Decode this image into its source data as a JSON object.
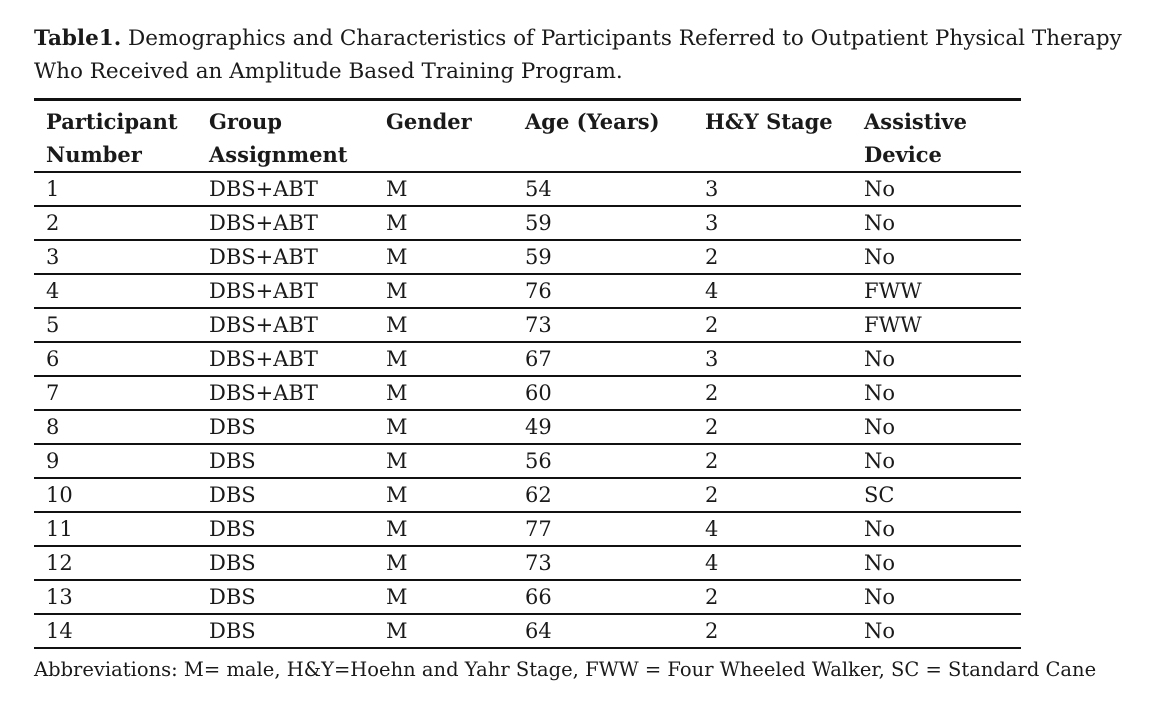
{
  "caption": {
    "label": "Table1.",
    "text": "Demographics and Characteristics of Participants Referred to Outpatient Physical Therapy Who Received an Amplitude Based Training Program."
  },
  "table": {
    "headers": {
      "participant_line1": "Participant",
      "participant_line2": "Number",
      "group_line1": "Group",
      "group_line2": "Assignment",
      "gender": "Gender",
      "age": "Age (Years)",
      "hy": "H&Y Stage",
      "device_line1": "Assistive",
      "device_line2": "Device"
    },
    "rows": [
      {
        "participant": "1",
        "group": "DBS+ABT",
        "gender": "M",
        "age": "54",
        "hy": "3",
        "device": "No"
      },
      {
        "participant": "2",
        "group": "DBS+ABT",
        "gender": "M",
        "age": "59",
        "hy": "3",
        "device": "No"
      },
      {
        "participant": "3",
        "group": "DBS+ABT",
        "gender": "M",
        "age": "59",
        "hy": "2",
        "device": "No"
      },
      {
        "participant": "4",
        "group": "DBS+ABT",
        "gender": "M",
        "age": "76",
        "hy": "4",
        "device": "FWW"
      },
      {
        "participant": "5",
        "group": "DBS+ABT",
        "gender": "M",
        "age": "73",
        "hy": "2",
        "device": "FWW"
      },
      {
        "participant": "6",
        "group": "DBS+ABT",
        "gender": "M",
        "age": "67",
        "hy": "3",
        "device": "No"
      },
      {
        "participant": "7",
        "group": "DBS+ABT",
        "gender": "M",
        "age": "60",
        "hy": "2",
        "device": "No"
      },
      {
        "participant": "8",
        "group": "DBS",
        "gender": "M",
        "age": "49",
        "hy": "2",
        "device": "No"
      },
      {
        "participant": "9",
        "group": "DBS",
        "gender": "M",
        "age": "56",
        "hy": "2",
        "device": "No"
      },
      {
        "participant": "10",
        "group": "DBS",
        "gender": "M",
        "age": "62",
        "hy": "2",
        "device": "SC"
      },
      {
        "participant": "11",
        "group": "DBS",
        "gender": "M",
        "age": "77",
        "hy": "4",
        "device": "No"
      },
      {
        "participant": "12",
        "group": "DBS",
        "gender": "M",
        "age": "73",
        "hy": "4",
        "device": "No"
      },
      {
        "participant": "13",
        "group": "DBS",
        "gender": "M",
        "age": "66",
        "hy": "2",
        "device": "No"
      },
      {
        "participant": "14",
        "group": "DBS",
        "gender": "M",
        "age": "64",
        "hy": "2",
        "device": "No"
      }
    ]
  },
  "footnote": "Abbreviations: M= male, H&Y=Hoehn and Yahr Stage, FWW = Four Wheeled Walker, SC = Standard Cane"
}
